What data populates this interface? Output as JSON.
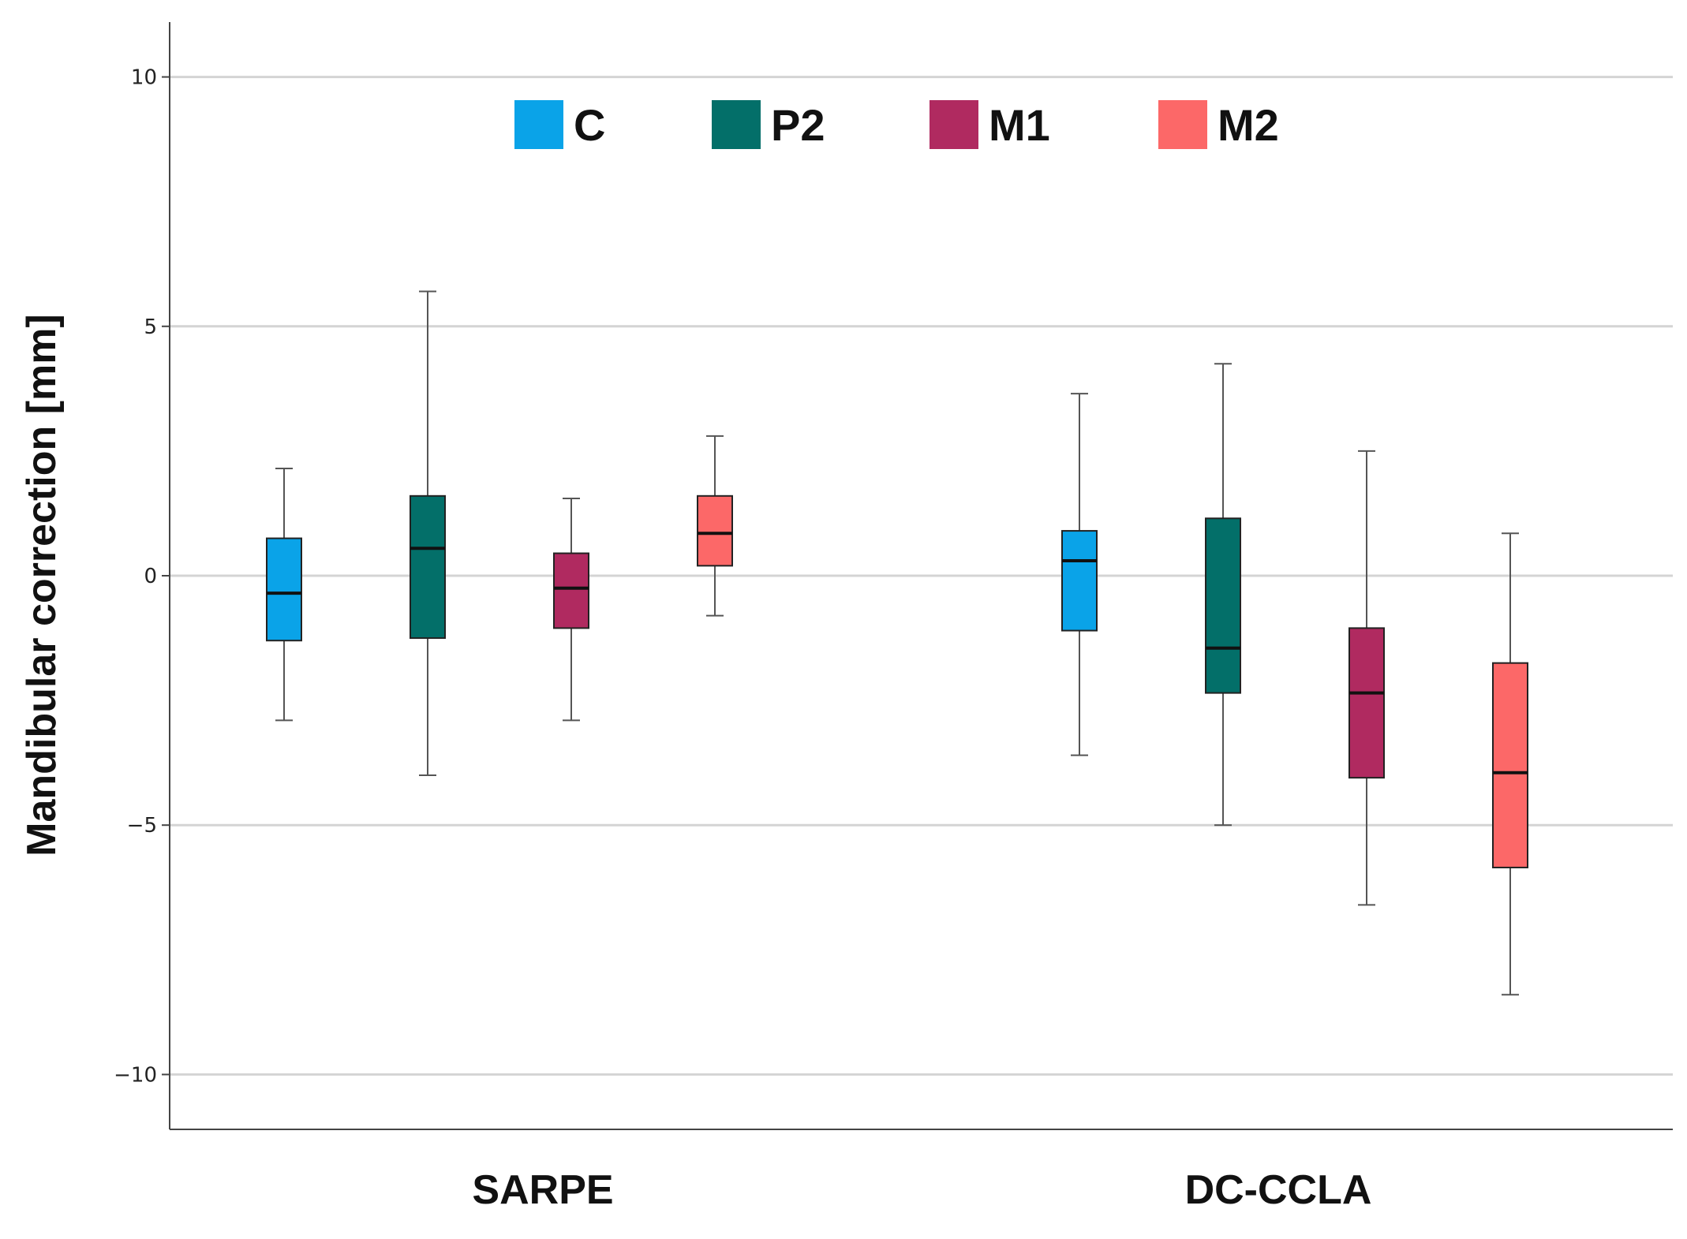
{
  "chart_data": {
    "type": "boxplot",
    "title": "",
    "xlabel": "",
    "ylabel": "Mandibular correction [mm]",
    "ylim": [
      -11.1,
      11.1
    ],
    "yticks": [
      10,
      5,
      0,
      -5,
      -10
    ],
    "ytick_labels": [
      "10",
      "5",
      "0",
      "−5",
      "−10"
    ],
    "grid": true,
    "legend_position": "top",
    "categories": [
      "SARPE",
      "DC-CCLA"
    ],
    "series": [
      {
        "name": "C",
        "color": "#0aa3e8",
        "boxes": [
          {
            "min": -2.9,
            "q1": -1.3,
            "median": -0.35,
            "q3": 0.75,
            "max": 2.15
          },
          {
            "min": -3.6,
            "q1": -1.1,
            "median": 0.3,
            "q3": 0.9,
            "max": 3.65
          }
        ]
      },
      {
        "name": "P2",
        "color": "#036f69",
        "boxes": [
          {
            "min": -4.0,
            "q1": -1.25,
            "median": 0.55,
            "q3": 1.6,
            "max": 5.7
          },
          {
            "min": -5.0,
            "q1": -2.35,
            "median": -1.45,
            "q3": 1.15,
            "max": 4.25
          }
        ]
      },
      {
        "name": "M1",
        "color": "#b02a60",
        "boxes": [
          {
            "min": -2.9,
            "q1": -1.05,
            "median": -0.25,
            "q3": 0.45,
            "max": 1.55
          },
          {
            "min": -6.6,
            "q1": -4.05,
            "median": -2.35,
            "q3": -1.05,
            "max": 2.5
          }
        ]
      },
      {
        "name": "M2",
        "color": "#fc6868",
        "boxes": [
          {
            "min": -0.8,
            "q1": 0.2,
            "median": 0.85,
            "q3": 1.6,
            "max": 2.8
          },
          {
            "min": -8.4,
            "q1": -5.85,
            "median": -3.95,
            "q3": -1.75,
            "max": 0.85
          }
        ]
      }
    ]
  }
}
